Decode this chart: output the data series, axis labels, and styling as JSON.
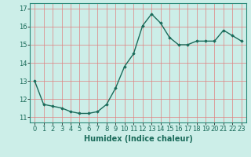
{
  "x": [
    0,
    1,
    2,
    3,
    4,
    5,
    6,
    7,
    8,
    9,
    10,
    11,
    12,
    13,
    14,
    15,
    16,
    17,
    18,
    19,
    20,
    21,
    22,
    23
  ],
  "y": [
    13.0,
    11.7,
    11.6,
    11.5,
    11.3,
    11.2,
    11.2,
    11.3,
    11.7,
    12.6,
    13.8,
    14.5,
    16.05,
    16.7,
    16.2,
    15.4,
    15.0,
    15.0,
    15.2,
    15.2,
    15.2,
    15.8,
    15.5,
    15.2
  ],
  "line_color": "#1a6b5a",
  "marker": "D",
  "marker_size": 1.8,
  "line_width": 1.0,
  "bg_color": "#cceee8",
  "grid_color": "#e08080",
  "xlabel": "Humidex (Indice chaleur)",
  "ylim": [
    10.7,
    17.3
  ],
  "xlim": [
    -0.5,
    23.5
  ],
  "yticks": [
    11,
    12,
    13,
    14,
    15,
    16,
    17
  ],
  "xticks": [
    0,
    1,
    2,
    3,
    4,
    5,
    6,
    7,
    8,
    9,
    10,
    11,
    12,
    13,
    14,
    15,
    16,
    17,
    18,
    19,
    20,
    21,
    22,
    23
  ],
  "xlabel_fontsize": 7.0,
  "tick_fontsize": 6.0,
  "spine_color": "#2a8a7a"
}
